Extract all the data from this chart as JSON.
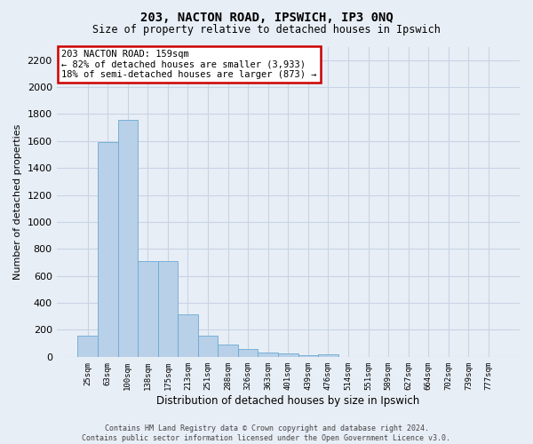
{
  "title_line1": "203, NACTON ROAD, IPSWICH, IP3 0NQ",
  "title_line2": "Size of property relative to detached houses in Ipswich",
  "xlabel": "Distribution of detached houses by size in Ipswich",
  "ylabel": "Number of detached properties",
  "categories": [
    "25sqm",
    "63sqm",
    "100sqm",
    "138sqm",
    "175sqm",
    "213sqm",
    "251sqm",
    "288sqm",
    "326sqm",
    "363sqm",
    "401sqm",
    "439sqm",
    "476sqm",
    "514sqm",
    "551sqm",
    "589sqm",
    "627sqm",
    "664sqm",
    "702sqm",
    "739sqm",
    "777sqm"
  ],
  "values": [
    160,
    1590,
    1760,
    710,
    710,
    315,
    160,
    90,
    55,
    30,
    25,
    15,
    20,
    0,
    0,
    0,
    0,
    0,
    0,
    0,
    0
  ],
  "bar_color": "#b8d0e8",
  "bar_edge_color": "#6aaad4",
  "annotation_text": "203 NACTON ROAD: 159sqm\n← 82% of detached houses are smaller (3,933)\n18% of semi-detached houses are larger (873) →",
  "annotation_box_color": "#ffffff",
  "annotation_border_color": "#cc0000",
  "ylim": [
    0,
    2300
  ],
  "yticks": [
    0,
    200,
    400,
    600,
    800,
    1000,
    1200,
    1400,
    1600,
    1800,
    2000,
    2200
  ],
  "grid_color": "#c8d4e4",
  "background_color": "#e8eef6",
  "footer_text": "Contains HM Land Registry data © Crown copyright and database right 2024.\nContains public sector information licensed under the Open Government Licence v3.0."
}
